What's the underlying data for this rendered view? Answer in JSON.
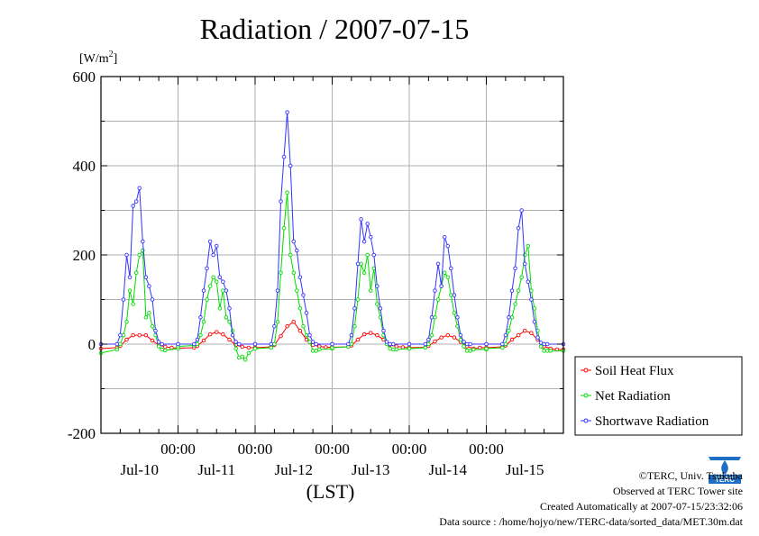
{
  "page": {
    "title": "Radiation / 2007-07-15",
    "footer": {
      "copyright": "©TERC, Univ. Tsukuba",
      "observed": "Observed at TERC Tower site",
      "created": "Created Automatically at 2007-07-15/23:32:06",
      "source": "Data source : /home/hojyo/new/TERC-data/sorted_data/MET.30m.dat"
    },
    "logo_text": "TERC"
  },
  "chart_data": {
    "type": "line",
    "title": "Radiation / 2007-07-15",
    "ylabel": "[W/m2]",
    "xlabel": "(LST)",
    "ylim": [
      -200,
      600
    ],
    "yticks": [
      -200,
      0,
      200,
      400,
      600
    ],
    "xlim_days": [
      0,
      6
    ],
    "x_time_labels": [
      "00:00",
      "00:00",
      "00:00",
      "00:00",
      "00:00"
    ],
    "x_day_labels": [
      "Jul-10",
      "Jul-11",
      "Jul-12",
      "Jul-13",
      "Jul-14",
      "Jul-15"
    ],
    "grid": true,
    "legend_position": "right",
    "x_unit": "hour of day (LST), one profile per day Jul-10 to Jul-15",
    "series": [
      {
        "name": "Soil Heat Flux",
        "color": "#ff0000",
        "days": [
          {
            "hours": [
              0,
              5,
              6,
              8,
              10,
              12,
              14,
              16,
              18,
              20,
              22,
              24
            ],
            "values": [
              -10,
              -8,
              -4,
              10,
              20,
              20,
              20,
              8,
              -2,
              -6,
              -8,
              -9
            ]
          },
          {
            "hours": [
              0,
              5,
              6,
              8,
              10,
              12,
              14,
              16,
              18,
              20,
              22,
              24
            ],
            "values": [
              -9,
              -8,
              -4,
              8,
              22,
              27,
              22,
              10,
              -2,
              -6,
              -8,
              -8
            ]
          },
          {
            "hours": [
              0,
              5,
              6,
              8,
              10,
              12,
              14,
              16,
              18,
              20,
              22,
              24
            ],
            "values": [
              -8,
              -6,
              -2,
              18,
              40,
              50,
              30,
              10,
              -2,
              -5,
              -7,
              -7
            ]
          },
          {
            "hours": [
              0,
              5,
              6,
              8,
              10,
              12,
              14,
              16,
              18,
              20,
              22,
              24
            ],
            "values": [
              -7,
              -6,
              -3,
              10,
              22,
              25,
              20,
              10,
              -2,
              -5,
              -7,
              -8
            ]
          },
          {
            "hours": [
              0,
              5,
              6,
              8,
              10,
              12,
              14,
              16,
              18,
              20,
              22,
              24
            ],
            "values": [
              -8,
              -7,
              -4,
              6,
              15,
              20,
              15,
              5,
              -5,
              -10,
              -8,
              -8
            ]
          },
          {
            "hours": [
              0,
              5,
              6,
              8,
              10,
              12,
              14,
              16,
              18,
              20,
              22,
              24
            ],
            "values": [
              -8,
              -6,
              -3,
              10,
              20,
              30,
              25,
              10,
              -5,
              -10,
              -12,
              -12
            ]
          }
        ]
      },
      {
        "name": "Net Radiation",
        "color": "#00dd00",
        "days": [
          {
            "hours": [
              0,
              5,
              6,
              7,
              8,
              9,
              10,
              11,
              12,
              13,
              14,
              15,
              16,
              17,
              18,
              19,
              20,
              24
            ],
            "values": [
              -20,
              -12,
              0,
              20,
              50,
              120,
              90,
              160,
              200,
              210,
              60,
              70,
              40,
              20,
              -5,
              -12,
              -14,
              -10
            ]
          },
          {
            "hours": [
              0,
              5,
              6,
              7,
              8,
              9,
              10,
              11,
              12,
              13,
              14,
              15,
              16,
              17,
              18,
              19,
              20,
              21,
              22,
              24
            ],
            "values": [
              -5,
              -3,
              0,
              20,
              50,
              100,
              130,
              150,
              140,
              80,
              120,
              60,
              50,
              30,
              -10,
              -30,
              -28,
              -35,
              -20,
              -10
            ]
          },
          {
            "hours": [
              0,
              5,
              6,
              7,
              8,
              9,
              10,
              11,
              12,
              13,
              14,
              15,
              16,
              17,
              18,
              19,
              20,
              24
            ],
            "values": [
              -10,
              -8,
              0,
              50,
              160,
              260,
              340,
              200,
              160,
              120,
              80,
              40,
              20,
              5,
              -15,
              -15,
              -12,
              -10
            ]
          },
          {
            "hours": [
              0,
              5,
              6,
              7,
              8,
              9,
              10,
              11,
              12,
              13,
              14,
              15,
              16,
              17,
              18,
              19,
              20,
              24
            ],
            "values": [
              -8,
              -6,
              0,
              40,
              100,
              180,
              160,
              200,
              120,
              170,
              90,
              60,
              20,
              0,
              -10,
              -12,
              -12,
              -10
            ]
          },
          {
            "hours": [
              0,
              5,
              6,
              7,
              8,
              9,
              10,
              11,
              12,
              13,
              14,
              15,
              16,
              17,
              18,
              19,
              20,
              24
            ],
            "values": [
              -10,
              -8,
              0,
              20,
              60,
              100,
              130,
              160,
              150,
              110,
              70,
              40,
              10,
              -5,
              -15,
              -15,
              -12,
              -12
            ]
          },
          {
            "hours": [
              0,
              5,
              6,
              7,
              8,
              9,
              10,
              11,
              12,
              13,
              14,
              15,
              16,
              17,
              18,
              19,
              20,
              24
            ],
            "values": [
              -10,
              -8,
              0,
              30,
              60,
              90,
              120,
              150,
              200,
              220,
              120,
              80,
              30,
              -5,
              -15,
              -15,
              -15,
              -15
            ]
          }
        ]
      },
      {
        "name": "Shortwave Radiation",
        "color": "#3333ff",
        "days": [
          {
            "hours": [
              0,
              5,
              6,
              7,
              8,
              9,
              10,
              11,
              12,
              13,
              14,
              15,
              16,
              17,
              18,
              19,
              24
            ],
            "values": [
              0,
              0,
              20,
              100,
              200,
              150,
              310,
              320,
              350,
              230,
              150,
              130,
              100,
              30,
              5,
              0,
              0
            ]
          },
          {
            "hours": [
              0,
              5,
              6,
              7,
              8,
              9,
              10,
              11,
              12,
              13,
              14,
              15,
              16,
              17,
              18,
              19,
              24
            ],
            "values": [
              0,
              0,
              10,
              60,
              120,
              170,
              230,
              200,
              220,
              150,
              140,
              120,
              80,
              20,
              5,
              0,
              0
            ]
          },
          {
            "hours": [
              0,
              5,
              6,
              7,
              8,
              9,
              10,
              11,
              12,
              13,
              14,
              15,
              16,
              17,
              18,
              19,
              24
            ],
            "values": [
              0,
              0,
              40,
              120,
              320,
              420,
              520,
              400,
              230,
              210,
              150,
              110,
              70,
              20,
              5,
              0,
              0
            ]
          },
          {
            "hours": [
              0,
              5,
              6,
              7,
              8,
              9,
              10,
              11,
              12,
              13,
              14,
              15,
              16,
              17,
              18,
              19,
              24
            ],
            "values": [
              0,
              0,
              20,
              80,
              180,
              280,
              230,
              270,
              240,
              200,
              130,
              80,
              30,
              5,
              0,
              0,
              0
            ]
          },
          {
            "hours": [
              0,
              5,
              6,
              7,
              8,
              9,
              10,
              11,
              12,
              13,
              14,
              15,
              16,
              17,
              18,
              19,
              24
            ],
            "values": [
              0,
              0,
              10,
              60,
              120,
              180,
              130,
              240,
              220,
              170,
              110,
              60,
              20,
              5,
              0,
              0,
              0
            ]
          },
          {
            "hours": [
              0,
              5,
              6,
              7,
              8,
              9,
              10,
              11,
              12,
              13,
              14,
              15,
              16,
              17,
              18,
              19,
              24
            ],
            "values": [
              0,
              0,
              20,
              60,
              120,
              170,
              260,
              300,
              180,
              140,
              100,
              50,
              15,
              3,
              0,
              0,
              0
            ]
          }
        ]
      }
    ]
  }
}
